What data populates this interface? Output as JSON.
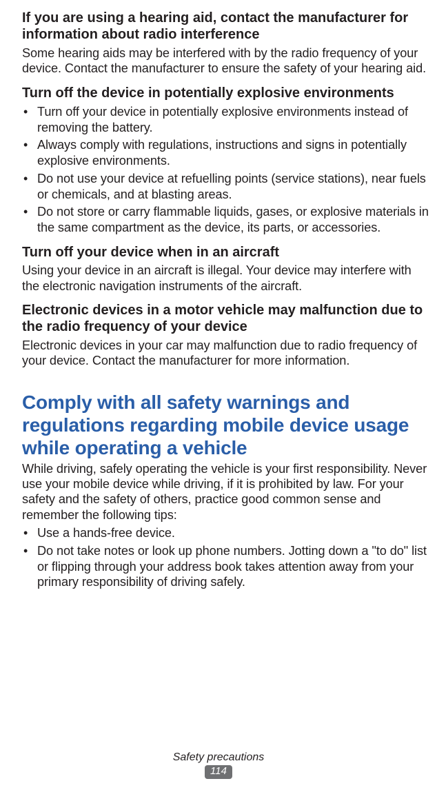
{
  "title_color": "#2a5ea8",
  "text_color": "#231f20",
  "badge_bg": "#6f7072",
  "sec1": {
    "heading": "If you are using a hearing aid, contact the manufacturer for information about radio interference",
    "body": "Some hearing aids may be interfered with by the radio frequency of your device. Contact the manufacturer to ensure the safety of your hearing aid."
  },
  "sec2": {
    "heading": "Turn off the device in potentially explosive environments",
    "items": [
      "Turn off your device in potentially explosive environments instead of removing the battery.",
      "Always comply with regulations, instructions and signs in potentially explosive environments.",
      "Do not use your device at refuelling points (service stations), near fuels or chemicals, and at blasting areas.",
      "Do not store or carry flammable liquids, gases, or explosive materials in the same compartment as the device, its parts, or accessories."
    ]
  },
  "sec3": {
    "heading": "Turn off your device when in an aircraft",
    "body": "Using your device in an aircraft is illegal. Your device may interfere with the electronic navigation instruments of the aircraft."
  },
  "sec4": {
    "heading": "Electronic devices in a motor vehicle may malfunction due to the radio frequency of your device",
    "body": "Electronic devices in your car may malfunction due to radio frequency of your device. Contact the manufacturer for more information."
  },
  "sec5": {
    "title": "Comply with all safety warnings and regulations regarding mobile device usage while operating a vehicle",
    "intro": "While driving, safely operating the vehicle is your first responsibility. Never use your mobile device while driving, if it is prohibited by law. For your safety and the safety of others, practice good common sense and remember the following tips:",
    "items": [
      "Use a hands-free device.",
      "Do not take notes or look up phone numbers. Jotting down a \"to do\" list or flipping through your address book takes attention away from your primary responsibility of driving safely."
    ]
  },
  "footer": {
    "label": "Safety precautions",
    "page": "114"
  }
}
